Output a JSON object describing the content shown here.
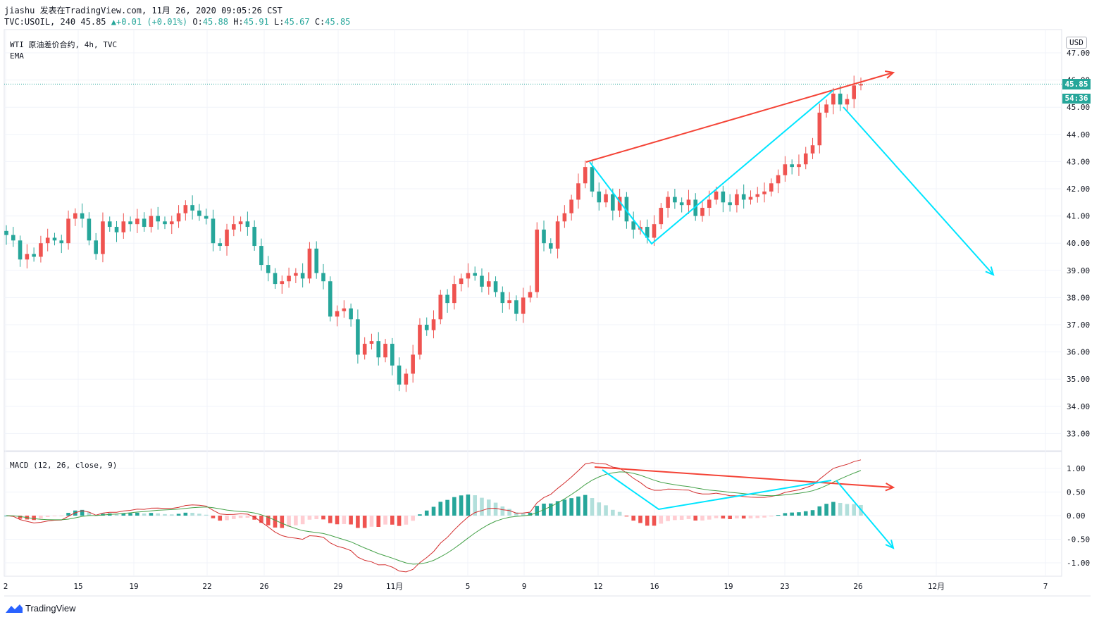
{
  "header": {
    "publish_line": "jiashu 发表在TradingView.com, 11月 26, 2020 09:05:26 CST",
    "symbol": "TVC:USOIL, 240",
    "last": "45.85",
    "change": "+0.01 (+0.01%)",
    "o_label": "O:",
    "o": "45.88",
    "h_label": "H:",
    "h": "45.91",
    "l_label": "L:",
    "l": "45.67",
    "c_label": "C:",
    "c": "45.85"
  },
  "main_pane": {
    "title": "WTI 原油差价合约, 4h, TVC",
    "indicator": "EMA",
    "currency": "USD",
    "price_tag": "45.85",
    "countdown_tag": "54:36",
    "up_color": "#ef5350",
    "down_color": "#26a69a"
  },
  "macd_pane": {
    "title": "MACD (12, 26, close, 9)"
  },
  "brand": "TradingView",
  "chart_data": [
    {
      "type": "candlestick",
      "title": "WTI 原油差价合约, 4h, TVC",
      "ylabel": "USD",
      "ylim": [
        32.5,
        47.5
      ],
      "yticks": [
        "47.00",
        "46.00",
        "45.00",
        "44.00",
        "43.00",
        "42.00",
        "41.00",
        "40.00",
        "39.00",
        "38.00",
        "37.00",
        "36.00",
        "35.00",
        "34.00",
        "33.00"
      ],
      "xticks": [
        "2",
        "15",
        "19",
        "22",
        "26",
        "29",
        "11月",
        "5",
        "9",
        "12",
        "16",
        "19",
        "23",
        "26",
        "12月",
        "7"
      ],
      "last_price": 45.85,
      "closes": [
        40.3,
        40.1,
        39.4,
        39.6,
        39.5,
        40.0,
        40.2,
        40.1,
        40.0,
        40.9,
        41.1,
        40.9,
        40.1,
        39.6,
        40.8,
        40.6,
        40.4,
        40.8,
        40.7,
        40.9,
        40.6,
        41.0,
        40.8,
        40.7,
        40.8,
        41.1,
        41.4,
        41.2,
        41.0,
        40.9,
        40.0,
        39.9,
        40.5,
        40.7,
        40.8,
        40.6,
        39.9,
        39.2,
        38.9,
        38.5,
        38.6,
        38.8,
        38.9,
        38.7,
        39.8,
        38.9,
        38.6,
        37.3,
        37.5,
        37.6,
        37.2,
        35.9,
        36.3,
        36.4,
        35.8,
        36.3,
        35.5,
        34.8,
        35.2,
        35.9,
        37.0,
        36.8,
        37.2,
        38.1,
        37.8,
        38.5,
        38.7,
        38.9,
        38.8,
        38.4,
        38.6,
        38.2,
        37.8,
        37.9,
        37.4,
        38.0,
        38.2,
        40.5,
        40.0,
        39.8,
        40.8,
        41.1,
        41.6,
        42.2,
        42.8,
        41.9,
        41.5,
        41.8,
        41.2,
        41.7,
        40.8,
        40.5,
        40.6,
        40.2,
        40.7,
        41.3,
        41.7,
        41.5,
        41.4,
        41.6,
        41.0,
        41.3,
        41.6,
        41.9,
        41.5,
        41.4,
        41.8,
        41.6,
        41.7,
        41.8,
        41.9,
        42.2,
        42.5,
        42.9,
        42.8,
        42.9,
        43.3,
        43.6,
        44.8,
        45.1,
        45.5,
        45.1,
        45.3,
        45.8,
        45.85
      ]
    },
    {
      "type": "line",
      "title": "MACD (12, 26, close, 9)",
      "ylim": [
        -1.15,
        1.1
      ],
      "yticks": [
        "1.00",
        "0.50",
        "0.00",
        "-0.50",
        "-1.00"
      ]
    }
  ]
}
